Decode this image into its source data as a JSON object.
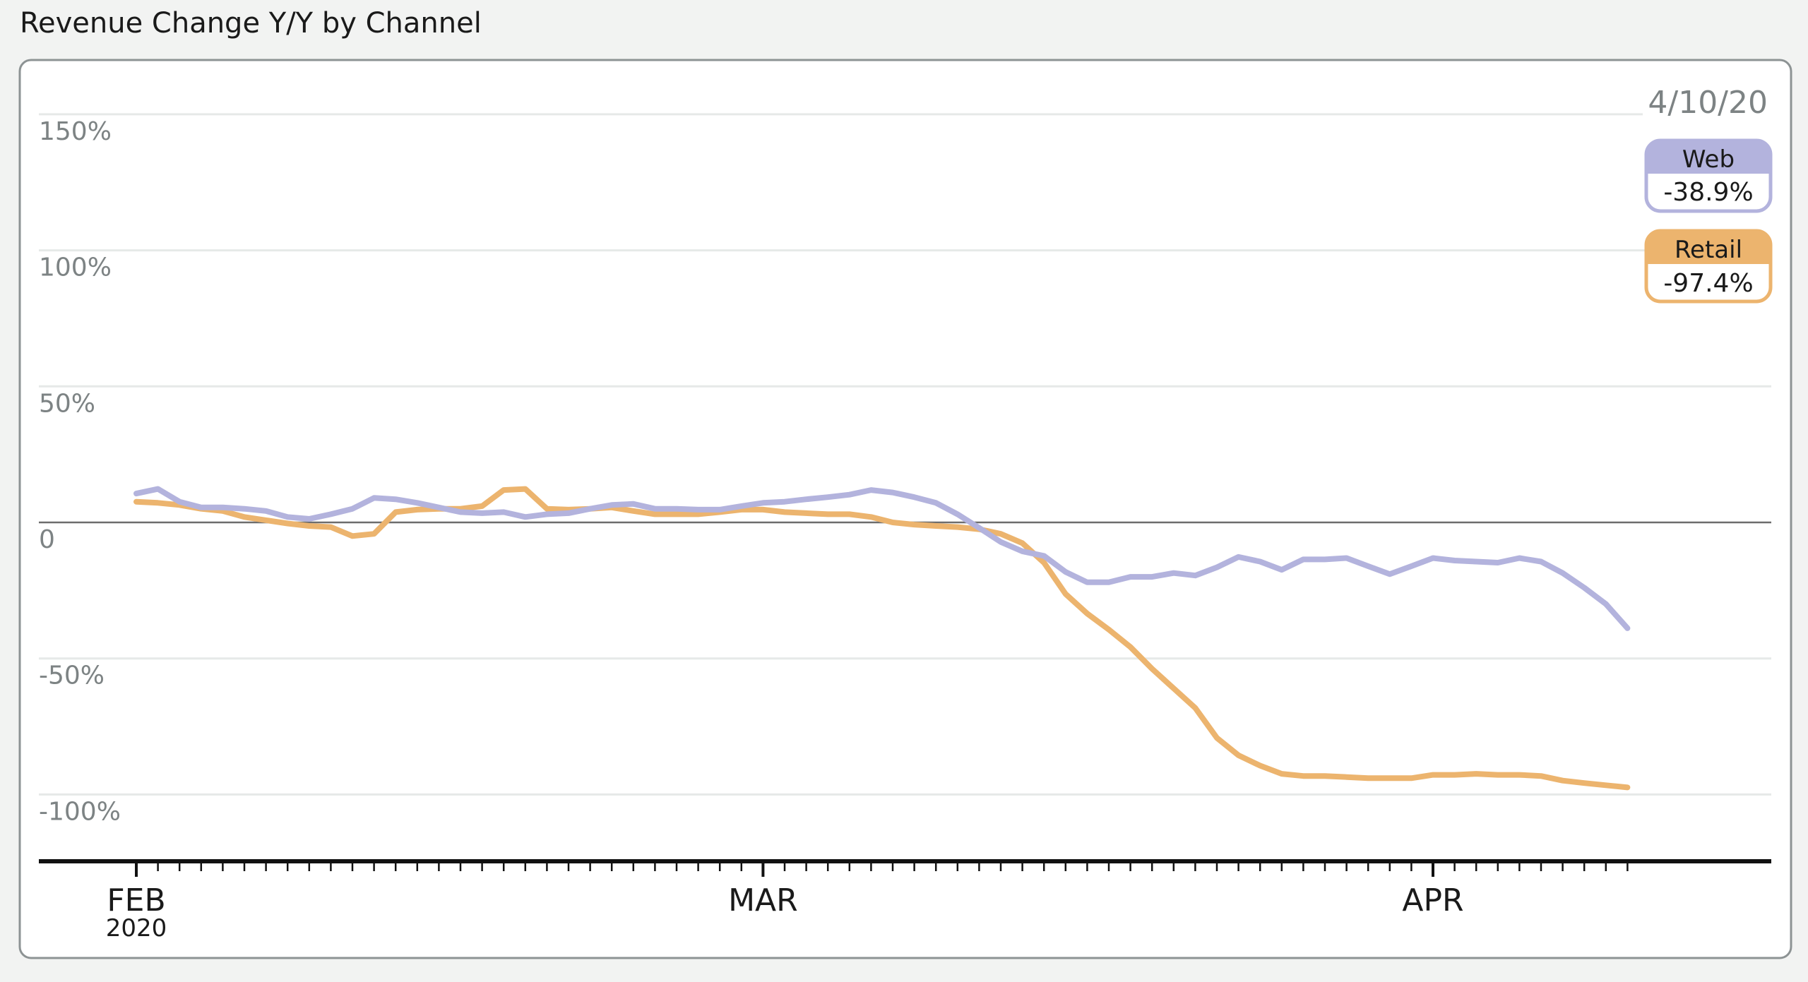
{
  "title": "Revenue Change Y/Y by Channel",
  "chart_data": {
    "type": "line",
    "title": "Revenue Change Y/Y by Channel",
    "xlabel": "",
    "ylabel": "",
    "x_start": "2020-02-01",
    "x_end": "2020-04-10",
    "x_frequency": "daily",
    "x_tick_labels": [
      {
        "label": "FEB",
        "sublabel": "2020",
        "date": "2020-02-01"
      },
      {
        "label": "MAR",
        "date": "2020-03-01"
      },
      {
        "label": "APR",
        "date": "2020-04-01"
      }
    ],
    "ylim": [
      -125,
      150
    ],
    "y_ticks": [
      {
        "value": 150,
        "label": "150%"
      },
      {
        "value": 100,
        "label": "100%"
      },
      {
        "value": 50,
        "label": "50%"
      },
      {
        "value": 0,
        "label": "0"
      },
      {
        "value": -50,
        "label": "-50%"
      },
      {
        "value": -100,
        "label": "-100%"
      }
    ],
    "grid": true,
    "legend_position": "top-right",
    "hover_date": "4/10/20",
    "series": [
      {
        "name": "Web",
        "color": "#b3b3dd",
        "last_value_label": "-38.9%",
        "values": [
          10.6,
          12.3,
          7.6,
          5.5,
          5.5,
          5,
          4.2,
          2,
          1.3,
          3,
          5,
          9,
          8.5,
          7.2,
          5.5,
          3.8,
          3.4,
          3.8,
          2,
          3,
          3.4,
          5,
          6.4,
          6.8,
          5,
          5,
          4.7,
          4.7,
          6,
          7.2,
          7.6,
          8.5,
          9.3,
          10.2,
          11.9,
          11,
          9.3,
          7.2,
          3,
          -2,
          -7.2,
          -10.6,
          -12.3,
          -18.2,
          -22,
          -22,
          -20,
          -20,
          -18.6,
          -19.5,
          -16.5,
          -12.7,
          -14.4,
          -17.4,
          -13.6,
          -13.6,
          -13.1,
          -16.1,
          -19,
          -16.1,
          -13.1,
          -14,
          -14.4,
          -14.8,
          -13.1,
          -14.4,
          -18.6,
          -24,
          -30,
          -38.9
        ]
      },
      {
        "name": "Retail",
        "color": "#ecb46e",
        "last_value_label": "-97.4%",
        "values": [
          7.6,
          7.2,
          6.4,
          5,
          4.2,
          2,
          0.8,
          -0.4,
          -1.3,
          -1.7,
          -5,
          -4.2,
          3.8,
          4.7,
          5,
          5,
          6,
          11.9,
          12.3,
          5,
          4.7,
          5,
          5.5,
          4.2,
          3,
          3,
          3,
          3.8,
          4.7,
          4.7,
          3.8,
          3.4,
          3,
          3,
          2,
          0,
          -0.8,
          -1.3,
          -1.7,
          -2.5,
          -4.2,
          -7.6,
          -14.8,
          -26.3,
          -33.5,
          -39.4,
          -45.8,
          -53.8,
          -61,
          -68.2,
          -79.2,
          -85.6,
          -89.4,
          -92.4,
          -93.2,
          -93.2,
          -93.6,
          -94,
          -94,
          -94,
          -92.8,
          -92.8,
          -92.4,
          -92.8,
          -92.8,
          -93.2,
          -94.9,
          -95.8,
          -96.6,
          -97.4
        ]
      }
    ]
  }
}
